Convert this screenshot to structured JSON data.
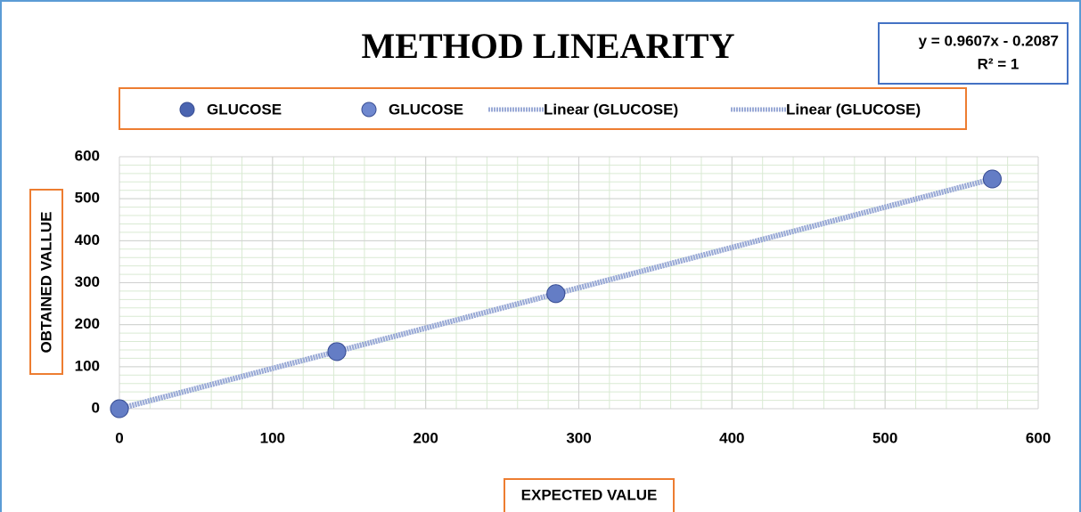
{
  "chart_data": {
    "type": "scatter",
    "title": "METHOD LINEARITY",
    "annotations": [
      "y = 0.9607x - 0.2087",
      "R² = 1"
    ],
    "x_label": "EXPECTED VALUE",
    "y_label": "OBTAINED VALLUE",
    "series": [
      {
        "name": "GLUCOSE",
        "color": "#4a64b0",
        "x": [
          0,
          142,
          285,
          570
        ],
        "values": [
          0,
          136,
          274,
          547
        ]
      },
      {
        "name": "GLUCOSE",
        "color": "#6f88cf",
        "x": [
          0,
          142,
          285,
          570
        ],
        "values": [
          0,
          136,
          274,
          547
        ]
      }
    ],
    "trendline_names": [
      "Linear (GLUCOSE)",
      "Linear (GLUCOSE)"
    ],
    "trendline_color": "#9aaad6",
    "xlim": [
      0,
      600
    ],
    "xticks": [
      0,
      100,
      200,
      300,
      400,
      500,
      600
    ],
    "ylim": [
      0,
      600
    ],
    "yticks": [
      0,
      100,
      200,
      300,
      400,
      500,
      600
    ],
    "grid": true,
    "minor_grid": 20
  }
}
